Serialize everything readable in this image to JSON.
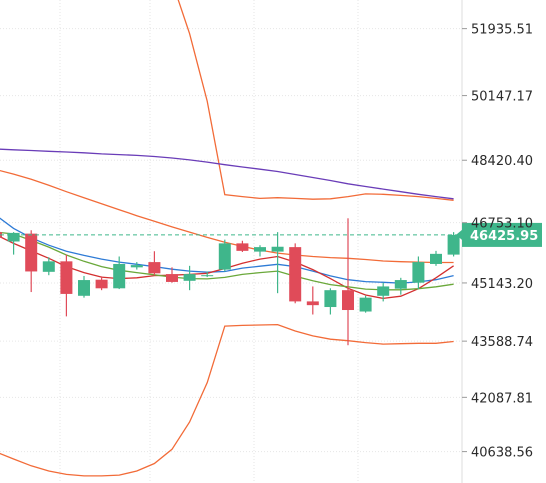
{
  "chart_data": {
    "type": "candlestick",
    "colors": {
      "up": "#3fb68b",
      "down": "#e04b59",
      "bollinger": "#f26b38",
      "ma_long": "#6a3db8",
      "ma_blue": "#2e7bd6",
      "ma_red": "#d32f2f",
      "ma_green": "#6aa83a",
      "last_price_bg": "#3fb68b",
      "grid": "#e6e6e6",
      "axis_divider": "#dcdcdc"
    },
    "y_axis": {
      "ylim": [
        39800,
        52700
      ],
      "ticks": [
        51935.51,
        50147.17,
        48420.4,
        46753.1,
        45143.2,
        43588.74,
        42087.81,
        40638.56
      ],
      "tick_labels": [
        "51935.51",
        "50147.17",
        "48420.40",
        "46753.10",
        "45143.20",
        "43588.74",
        "42087.81",
        "40638.56"
      ]
    },
    "last_price": {
      "value": 46425.95,
      "label": "46425.95"
    },
    "grid": true,
    "candles": [
      {
        "o": 46500,
        "h": 46700,
        "l": 46300,
        "c": 46350
      },
      {
        "o": 46250,
        "h": 46500,
        "l": 45900,
        "c": 46480
      },
      {
        "o": 46460,
        "h": 46550,
        "l": 44900,
        "c": 45450
      },
      {
        "o": 45440,
        "h": 45830,
        "l": 45350,
        "c": 45720
      },
      {
        "o": 45720,
        "h": 45900,
        "l": 44250,
        "c": 44850
      },
      {
        "o": 44800,
        "h": 45330,
        "l": 44750,
        "c": 45220
      },
      {
        "o": 45230,
        "h": 45320,
        "l": 44950,
        "c": 45000
      },
      {
        "o": 45000,
        "h": 45850,
        "l": 44980,
        "c": 45650
      },
      {
        "o": 45560,
        "h": 45700,
        "l": 45500,
        "c": 45620
      },
      {
        "o": 45700,
        "h": 45990,
        "l": 45350,
        "c": 45400
      },
      {
        "o": 45380,
        "h": 45560,
        "l": 45150,
        "c": 45170
      },
      {
        "o": 45200,
        "h": 45600,
        "l": 44950,
        "c": 45380
      },
      {
        "o": 45350,
        "h": 45450,
        "l": 45300,
        "c": 45350
      },
      {
        "o": 45500,
        "h": 46300,
        "l": 45450,
        "c": 46200
      },
      {
        "o": 46200,
        "h": 46270,
        "l": 45970,
        "c": 46000
      },
      {
        "o": 45980,
        "h": 46150,
        "l": 45850,
        "c": 46100
      },
      {
        "o": 45980,
        "h": 46500,
        "l": 44870,
        "c": 46110
      },
      {
        "o": 46100,
        "h": 46200,
        "l": 44600,
        "c": 44650
      },
      {
        "o": 44650,
        "h": 45050,
        "l": 44300,
        "c": 44550
      },
      {
        "o": 44500,
        "h": 45000,
        "l": 44300,
        "c": 44950
      },
      {
        "o": 44950,
        "h": 46870,
        "l": 43480,
        "c": 44420
      },
      {
        "o": 44380,
        "h": 44800,
        "l": 44350,
        "c": 44750
      },
      {
        "o": 44800,
        "h": 45150,
        "l": 44650,
        "c": 45050
      },
      {
        "o": 44990,
        "h": 45280,
        "l": 44830,
        "c": 45220
      },
      {
        "o": 45150,
        "h": 45850,
        "l": 44980,
        "c": 45700
      },
      {
        "o": 45650,
        "h": 46000,
        "l": 45600,
        "c": 45920
      },
      {
        "o": 45900,
        "h": 46500,
        "l": 45850,
        "c": 46425.95
      }
    ],
    "series": [
      {
        "key": "bb_upper",
        "color": "#f26b38",
        "values": [
          null,
          null,
          null,
          null,
          null,
          null,
          null,
          null,
          null,
          null,
          53200,
          51800,
          50000,
          47500,
          47450,
          47400,
          47420,
          47400,
          47380,
          47390,
          47450,
          47520,
          47510,
          47480,
          47450,
          47400,
          47350
        ]
      },
      {
        "key": "bb_upper_left",
        "color": "#f26b38",
        "values": [
          48170,
          48050,
          47910,
          47750,
          47580,
          47420,
          47260,
          47100,
          46940,
          46790,
          46640,
          46500,
          46360,
          46230,
          46120,
          46020,
          45940,
          45890,
          45850,
          45820,
          45800,
          45770,
          45730,
          45710,
          45700,
          45690,
          45690
        ]
      },
      {
        "key": "bb_lower",
        "color": "#f26b38",
        "values": [
          40630,
          40440,
          40260,
          40120,
          40030,
          39990,
          39990,
          40010,
          40120,
          40320,
          40700,
          41430,
          42480,
          43990,
          44010,
          44020,
          44030,
          43860,
          43730,
          43640,
          43600,
          43550,
          43510,
          43520,
          43530,
          43530,
          43580
        ]
      },
      {
        "key": "ma_long",
        "color": "#6a3db8",
        "values": [
          48720,
          48700,
          48680,
          48660,
          48640,
          48620,
          48590,
          48570,
          48550,
          48520,
          48480,
          48430,
          48370,
          48300,
          48240,
          48180,
          48120,
          48040,
          47960,
          47880,
          47790,
          47720,
          47650,
          47580,
          47510,
          47450,
          47390
        ]
      },
      {
        "key": "ma_blue",
        "color": "#2e7bd6",
        "values": [
          46950,
          46600,
          46350,
          46150,
          45990,
          45880,
          45780,
          45700,
          45640,
          45580,
          45510,
          45460,
          45430,
          45450,
          45540,
          45590,
          45640,
          45580,
          45460,
          45330,
          45230,
          45180,
          45160,
          45140,
          45170,
          45230,
          45340
        ]
      },
      {
        "key": "ma_red",
        "color": "#d32f2f",
        "values": [
          46430,
          46200,
          46000,
          45800,
          45580,
          45420,
          45300,
          45260,
          45280,
          45340,
          45350,
          45370,
          45400,
          45530,
          45670,
          45780,
          45850,
          45700,
          45500,
          45260,
          45000,
          44820,
          44730,
          44790,
          44990,
          45280,
          45600
        ]
      },
      {
        "key": "ma_green",
        "color": "#6aa83a",
        "values": [
          46500,
          46450,
          46280,
          46100,
          45890,
          45720,
          45580,
          45480,
          45420,
          45360,
          45300,
          45260,
          45250,
          45290,
          45370,
          45420,
          45460,
          45320,
          45200,
          45100,
          45040,
          44980,
          44960,
          44960,
          44990,
          45040,
          45110
        ]
      }
    ]
  }
}
